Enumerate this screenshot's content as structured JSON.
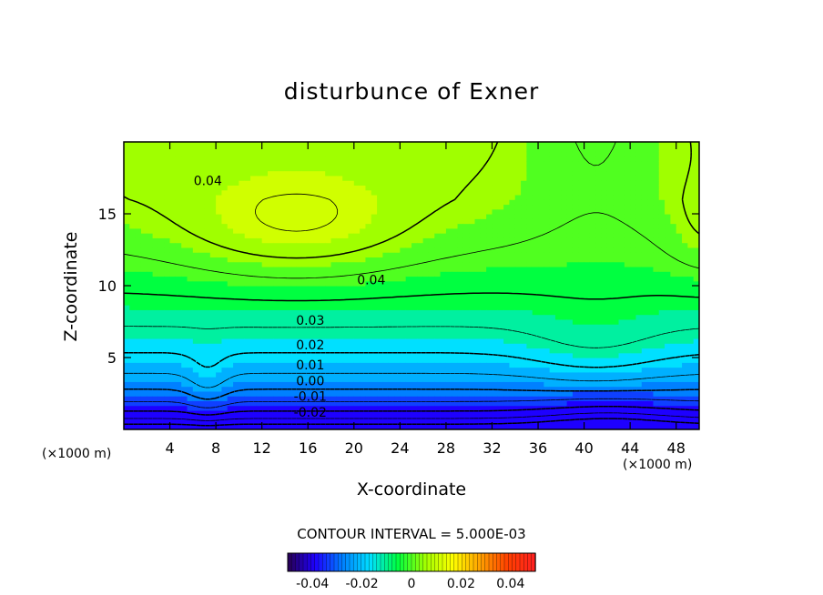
{
  "chart_data": {
    "type": "heatmap",
    "title": "disturbunce of Exner",
    "xlabel": "X-coordinate",
    "ylabel": "Z-coordinate",
    "x_unit_label": "(×1000 m)",
    "xlim": [
      0,
      50
    ],
    "ylim": [
      0,
      20
    ],
    "x_ticks": [
      4,
      8,
      12,
      16,
      20,
      24,
      28,
      32,
      36,
      40,
      44,
      48
    ],
    "y_ticks": [
      5,
      10,
      15
    ],
    "contour_interval_label": "CONTOUR INTERVAL = 5.000E-03",
    "contour_interval": 0.005,
    "contour_labels": [
      {
        "text": "0.04",
        "x": 7.3,
        "z": 17.3
      },
      {
        "text": "0.04",
        "x": 21.5,
        "z": 10.4
      },
      {
        "text": "0.03",
        "x": 16.2,
        "z": 7.6
      },
      {
        "text": "0.02",
        "x": 16.2,
        "z": 5.9
      },
      {
        "text": "0.01",
        "x": 16.2,
        "z": 4.5
      },
      {
        "text": "0.00",
        "x": 16.2,
        "z": 3.4
      },
      {
        "text": "-0.01",
        "x": 16.2,
        "z": 2.3
      },
      {
        "text": "-0.02",
        "x": 16.2,
        "z": 1.2
      }
    ],
    "colorbar": {
      "min": -0.05,
      "max": 0.05,
      "tick_values": [
        -0.04,
        -0.02,
        0,
        0.02,
        0.04
      ],
      "tick_labels": [
        "-0.04",
        "-0.02",
        "0",
        "0.02",
        "0.04"
      ]
    },
    "colormap": [
      "#1e00ff",
      "#0080ff",
      "#00e0ff",
      "#00ff40",
      "#a0ff00",
      "#ffff00",
      "#ffa000",
      "#ff4000",
      "#ff2020"
    ],
    "grid": false
  }
}
